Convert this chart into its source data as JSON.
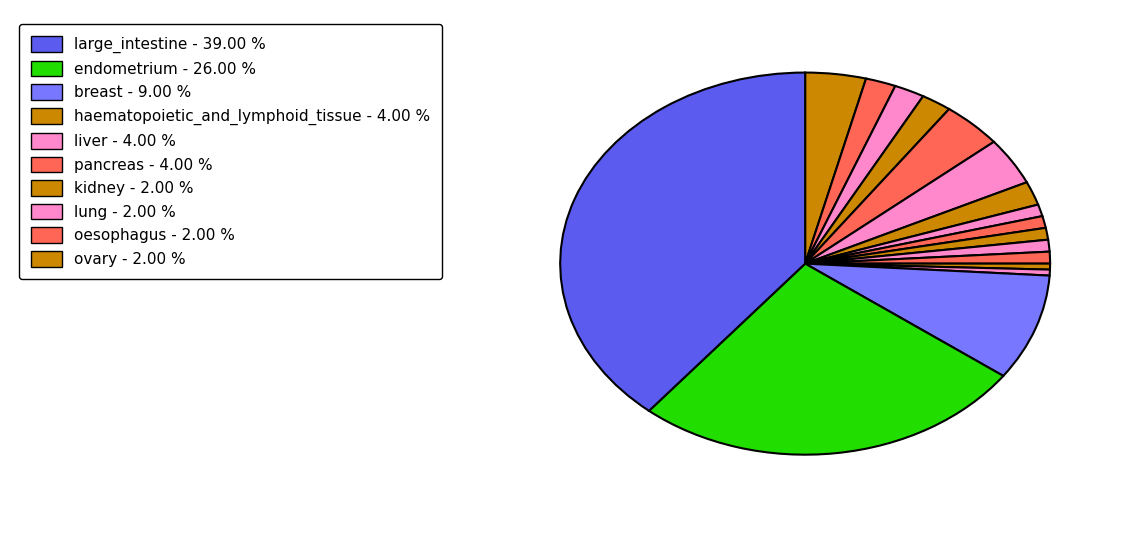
{
  "values": [
    39,
    26,
    9,
    4,
    4,
    4,
    2,
    2,
    2,
    2,
    1,
    1,
    1,
    1,
    1,
    0.5,
    0.5
  ],
  "colors": [
    "#5b5bef",
    "#22dd00",
    "#7777ff",
    "#cc8800",
    "#ff9999",
    "#ff88cc",
    "#cc8800",
    "#ff6655",
    "#ff88cc",
    "#cc8800",
    "#ff9999",
    "#ff88cc",
    "#cc8800",
    "#ff9999",
    "#ff88cc",
    "#cc8800",
    "#ff9999"
  ],
  "legend_labels": [
    "large_intestine - 39.00 %",
    "endometrium - 26.00 %",
    "breast - 9.00 %",
    "haematopoietic_and_lymphoid_tissue - 4.00 %",
    "liver - 4.00 %",
    "pancreas - 4.00 %",
    "kidney - 2.00 %",
    "lung - 2.00 %",
    "oesophagus - 2.00 %",
    "ovary - 2.00 %"
  ],
  "legend_colors": [
    "#5b5bef",
    "#22dd00",
    "#7777ff",
    "#cc8800",
    "#ff88cc",
    "#ff6655",
    "#cc8800",
    "#ff88cc",
    "#ff6655",
    "#cc8800"
  ],
  "startangle": 90,
  "figsize": [
    11.34,
    5.38
  ],
  "dpi": 100
}
